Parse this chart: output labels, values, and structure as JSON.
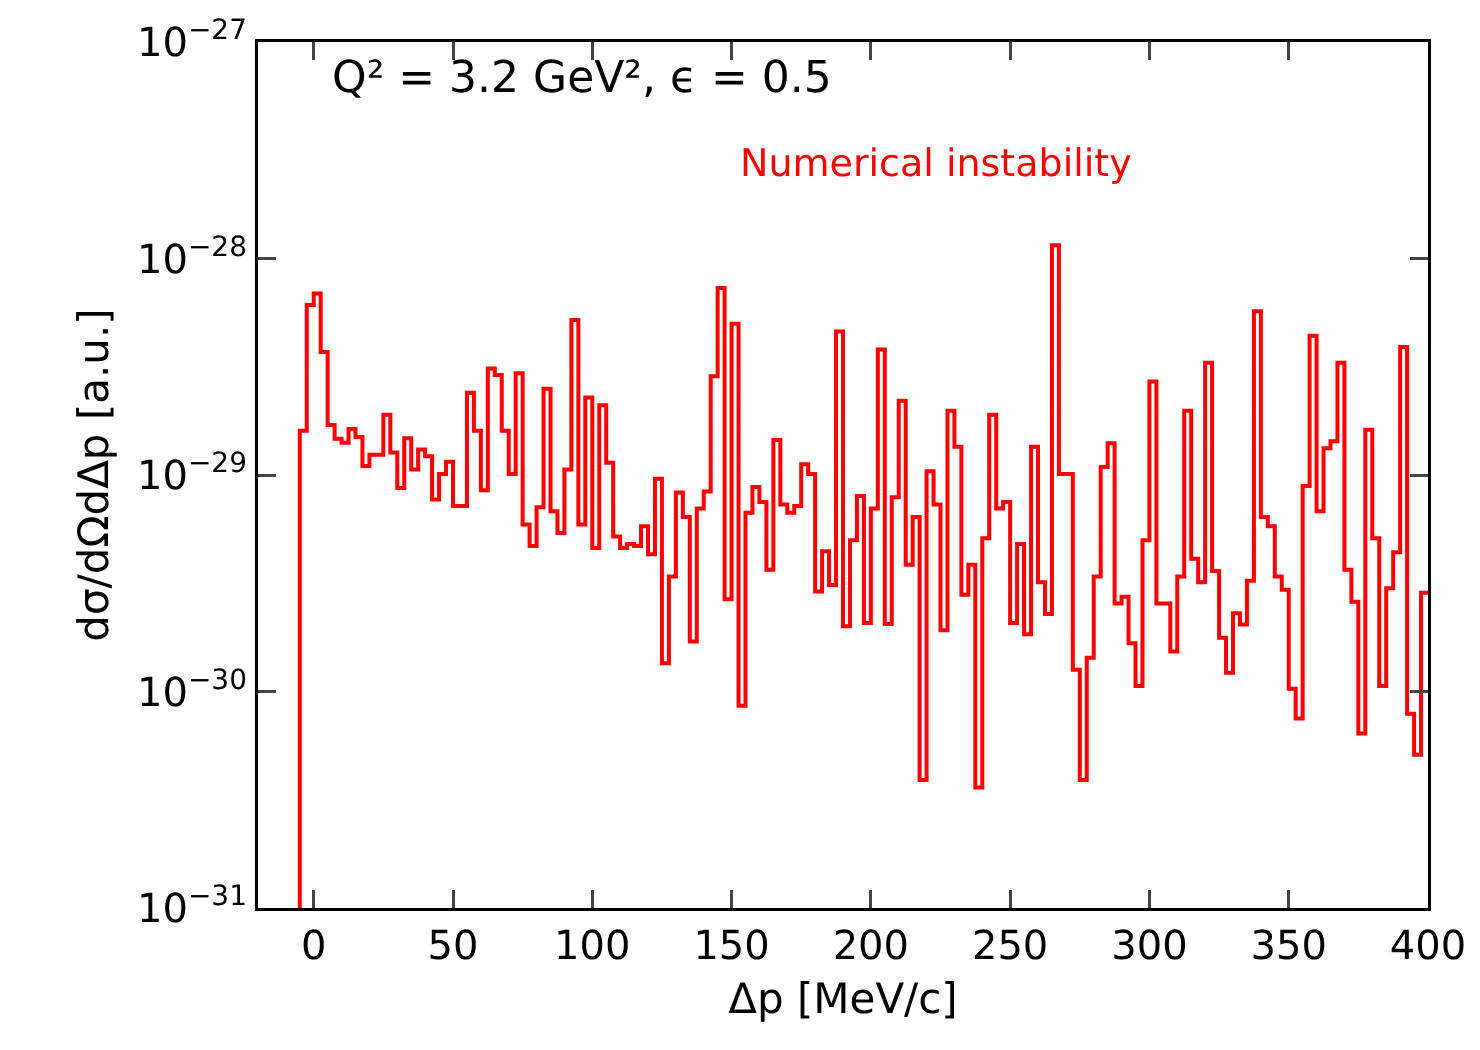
{
  "chart_data": {
    "type": "histogram",
    "xlabel": "Δp [MeV/c]",
    "ylabel": "dσ/dΩdΔp [a.u.]",
    "annotations": [
      "Q² = 3.2 GeV², ϵ = 0.5"
    ],
    "log": true,
    "grid": false,
    "xlim": [
      -20,
      400
    ],
    "xticks": [
      0,
      50,
      100,
      150,
      200,
      250,
      300,
      350,
      400
    ],
    "ylim": [
      1e-31,
      1e-27
    ],
    "yticks": [
      {
        "value": 1e-31,
        "label": "10$^{−31}$"
      },
      {
        "value": 1e-30,
        "label": "10$^{−30}$"
      },
      {
        "value": 1e-29,
        "label": "10$^{−29}$"
      },
      {
        "value": 1e-28,
        "label": "10$^{−28}$"
      },
      {
        "value": 1e-27,
        "label": "10$^{−27}$"
      }
    ],
    "bins": [
      -5,
      -2.5,
      0,
      2.5,
      5,
      7.5,
      10,
      12.5,
      15,
      17.5,
      20,
      22.5,
      25,
      27.5,
      30,
      32.5,
      35,
      37.5,
      40,
      42.5,
      45,
      47.5,
      50,
      52.5,
      55,
      57.5,
      60,
      62.5,
      65,
      67.5,
      70,
      72.5,
      75,
      77.5,
      80,
      82.5,
      85,
      87.5,
      90,
      92.5,
      95,
      97.5,
      100,
      102.5,
      105,
      107.5,
      110,
      112.5,
      115,
      117.5,
      120,
      122.5,
      125,
      127.5,
      130,
      132.5,
      135,
      137.5,
      140,
      142.5,
      145,
      147.5,
      150,
      152.5,
      155,
      157.5,
      160,
      162.5,
      165,
      167.5,
      170,
      172.5,
      175,
      177.5,
      180,
      182.5,
      185,
      187.5,
      190,
      192.5,
      195,
      197.5,
      200,
      202.5,
      205,
      207.5,
      210,
      212.5,
      215,
      217.5,
      220,
      222.5,
      225,
      227.5,
      230,
      232.5,
      235,
      237.5,
      240,
      242.5,
      245,
      247.5,
      250,
      252.5,
      255,
      257.5,
      260,
      262.5,
      265,
      267.5,
      270,
      272.5,
      275,
      277.5,
      280,
      282.5,
      285,
      287.5,
      290,
      292.5,
      295,
      297.5,
      300,
      302.5,
      305,
      307.5,
      310,
      312.5,
      315,
      317.5,
      320,
      322.5,
      325,
      327.5,
      330,
      332.5,
      335,
      337.5,
      340,
      342.5,
      345,
      347.5,
      350,
      352.5,
      355,
      357.5,
      360,
      362.5,
      365,
      367.5,
      370,
      372.5,
      375,
      377.5,
      380,
      382.5,
      385,
      387.5,
      390,
      392.5,
      395,
      397.5,
      400
    ],
    "series": [
      {
        "name": "Numerical instability",
        "color": "#ff0000",
        "values": [
          1.6e-29,
          6.1e-29,
          6.9e-29,
          3.7e-29,
          1.7e-29,
          1.47e-29,
          1.41e-29,
          1.63e-29,
          1.5e-29,
          1.1e-29,
          1.24e-29,
          1.24e-29,
          1.9e-29,
          1.27e-29,
          8.7e-30,
          1.48e-29,
          1.06e-29,
          1.31e-29,
          1.22e-29,
          7.7e-30,
          1.01e-29,
          1.15e-29,
          7.2e-30,
          7.2e-30,
          2.4e-29,
          1.6e-29,
          8.5e-30,
          3.1e-29,
          2.9e-29,
          1.6e-29,
          1.01e-29,
          2.95e-29,
          5.9e-30,
          4.7e-30,
          7.1e-30,
          2.5e-29,
          6.8e-30,
          5.4e-30,
          1.06e-29,
          5.2e-29,
          5.9e-30,
          2.28e-29,
          4.6e-30,
          2.1e-29,
          1.14e-29,
          5.2e-30,
          4.6e-30,
          4.8e-30,
          4.7e-30,
          5.8e-30,
          4.3e-30,
          9.6e-30,
          1.35e-30,
          3.4e-30,
          8.3e-30,
          6.4e-30,
          1.7e-30,
          7e-30,
          8.4e-30,
          2.86e-29,
          7.3e-29,
          2.67e-30,
          5e-29,
          8.6e-31,
          6.7e-30,
          8.8e-30,
          7.5e-30,
          3.65e-30,
          1.45e-29,
          7.3e-30,
          6.7e-30,
          7.2e-30,
          1.12e-29,
          1.01e-29,
          2.9e-30,
          4.45e-30,
          3.1e-30,
          4.6e-29,
          2e-30,
          5e-30,
          8e-30,
          2.07e-30,
          7e-30,
          3.8e-29,
          2.05e-30,
          7.9e-30,
          2.2e-29,
          3.85e-30,
          6.4e-30,
          3.9e-31,
          1.04e-29,
          7.3e-30,
          1.92e-30,
          1.98e-29,
          1.35e-29,
          2.8e-30,
          3.85e-30,
          3.6e-31,
          5.1e-30,
          1.9e-29,
          7e-30,
          7.5e-30,
          2.07e-30,
          4.8e-30,
          1.84e-30,
          1.35e-29,
          3.2e-30,
          2.28e-30,
          1.15e-28,
          1.01e-29,
          1.01e-29,
          1.26e-30,
          3.9e-31,
          1.43e-30,
          3.4e-30,
          1.09e-29,
          1.4e-29,
          2.55e-30,
          2.74e-30,
          1.67e-30,
          1.06e-30,
          5e-30,
          2.7e-29,
          2.55e-30,
          2.55e-30,
          1.53e-30,
          3.4e-30,
          1.98e-29,
          4.1e-30,
          3.2e-30,
          3.3e-29,
          3.6e-30,
          1.77e-30,
          1.22e-30,
          2.3e-30,
          2.04e-30,
          3.25e-30,
          5.7e-29,
          6.4e-30,
          5.8e-30,
          3.4e-30,
          2.95e-30,
          1.03e-30,
          7.5e-31,
          8.9e-30,
          4.4e-29,
          6.8e-30,
          1.33e-29,
          1.43e-29,
          3.3e-29,
          3.65e-30,
          2.6e-30,
          6.4e-31,
          1.62e-29,
          5.1e-30,
          1.06e-30,
          3e-30,
          4.4e-30,
          3.9e-29,
          7.9e-31,
          5.1e-31,
          2.86e-30
        ]
      }
    ]
  }
}
